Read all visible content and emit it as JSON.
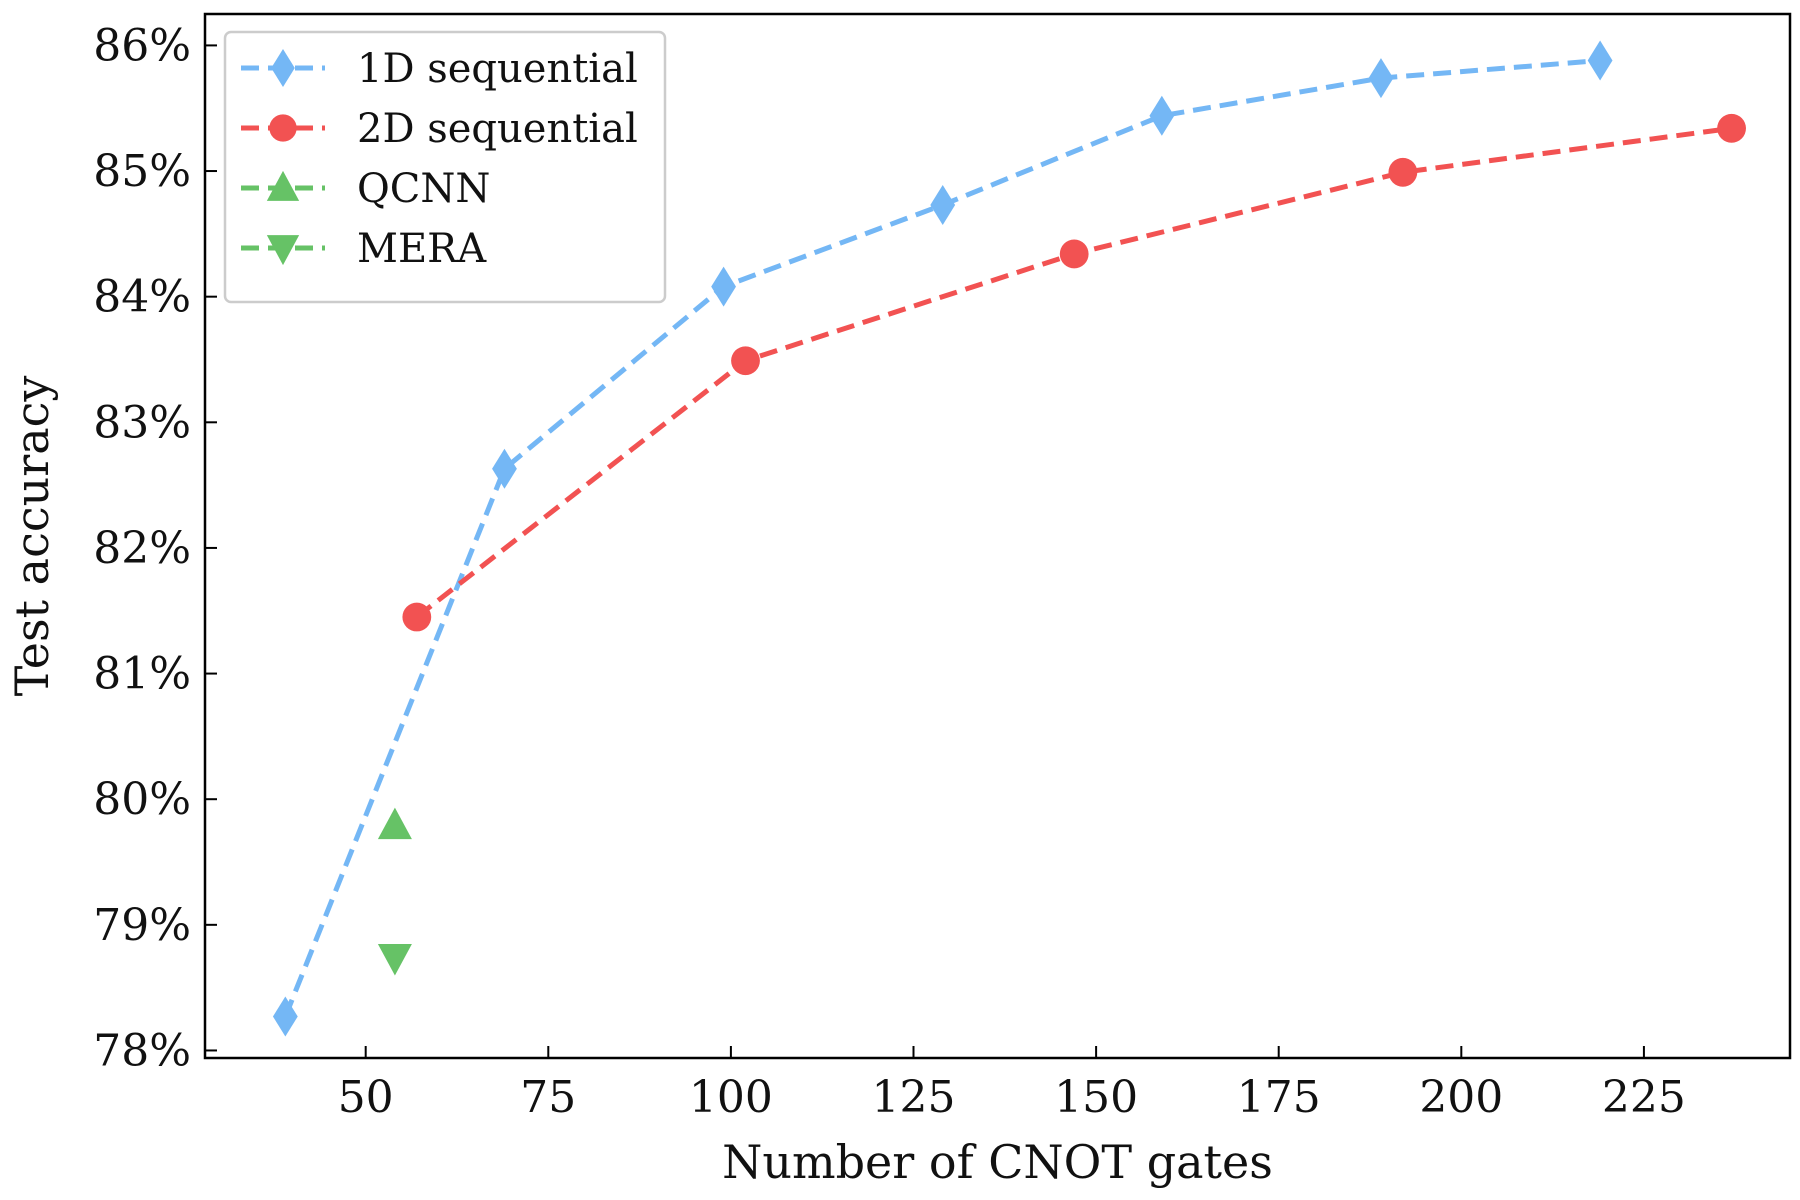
{
  "colors": {
    "background": "#ffffff",
    "axis": "#000000",
    "text": "#111111",
    "legend_border": "#cccccc"
  },
  "chart_data": {
    "type": "line",
    "title": "",
    "xlabel": "Number of CNOT gates",
    "ylabel": "Test accuracy",
    "xlim": [
      28,
      245
    ],
    "ylim": [
      77.94,
      86.25
    ],
    "xticks": [
      50,
      75,
      100,
      125,
      150,
      175,
      200,
      225
    ],
    "xtick_labels": [
      "50",
      "75",
      "100",
      "125",
      "150",
      "175",
      "200",
      "225"
    ],
    "yticks": [
      78,
      79,
      80,
      81,
      82,
      83,
      84,
      85,
      86
    ],
    "ytick_labels": [
      "78%",
      "79%",
      "80%",
      "81%",
      "82%",
      "83%",
      "84%",
      "85%",
      "86%"
    ],
    "grid": false,
    "legend_position": "top-left",
    "series": [
      {
        "name": "1D sequential",
        "color": "#74b7f5",
        "marker": "diamond",
        "linestyle": "dashed",
        "x": [
          39,
          69,
          99,
          129,
          159,
          189,
          219
        ],
        "y": [
          78.27,
          82.63,
          84.08,
          84.73,
          85.44,
          85.74,
          85.88
        ]
      },
      {
        "name": "2D sequential",
        "color": "#f25252",
        "marker": "circle",
        "linestyle": "dashed",
        "x": [
          57,
          102,
          147,
          192,
          237
        ],
        "y": [
          81.45,
          83.49,
          84.34,
          84.99,
          85.34
        ]
      },
      {
        "name": "QCNN",
        "color": "#66c266",
        "marker": "triangle-up",
        "linestyle": "dashed",
        "x": [
          54
        ],
        "y": [
          79.79
        ]
      },
      {
        "name": "MERA",
        "color": "#66c266",
        "marker": "triangle-down",
        "linestyle": "dashed",
        "x": [
          54
        ],
        "y": [
          78.74
        ]
      }
    ]
  }
}
